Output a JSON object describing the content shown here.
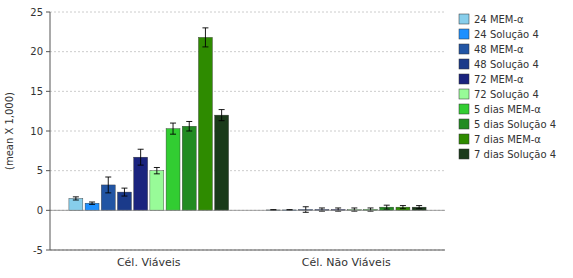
{
  "chart_data": {
    "type": "bar",
    "categories": [
      "Cél. Viáveis",
      "Cél. Não Viáveis"
    ],
    "series": [
      {
        "name": "24 MEM-α",
        "color": "#87ceeb",
        "values": [
          1.5,
          0.05
        ],
        "errors": [
          0.2,
          0.05
        ]
      },
      {
        "name": "24 Solução 4",
        "color": "#1e90ff",
        "values": [
          0.9,
          0.05
        ],
        "errors": [
          0.15,
          0.05
        ]
      },
      {
        "name": "48 MEM-α",
        "color": "#2255a4",
        "values": [
          3.2,
          0.1
        ],
        "errors": [
          1.0,
          0.35
        ]
      },
      {
        "name": "48 Solução 4",
        "color": "#1a3a8a",
        "values": [
          2.3,
          0.1
        ],
        "errors": [
          0.5,
          0.2
        ]
      },
      {
        "name": "72 MEM-α",
        "color": "#1a237e",
        "values": [
          6.7,
          0.1
        ],
        "errors": [
          1.0,
          0.2
        ]
      },
      {
        "name": "72 Solução 4",
        "color": "#98fb98",
        "values": [
          5.0,
          0.1
        ],
        "errors": [
          0.4,
          0.2
        ]
      },
      {
        "name": "5 dias MEM-α",
        "color": "#32cd32",
        "values": [
          10.3,
          0.1
        ],
        "errors": [
          0.7,
          0.2
        ]
      },
      {
        "name": "5 dias Solução 4",
        "color": "#228b22",
        "values": [
          10.6,
          0.4
        ],
        "errors": [
          0.6,
          0.25
        ]
      },
      {
        "name": "7 dias MEM-α",
        "color": "#2e8b00",
        "values": [
          21.8,
          0.4
        ],
        "errors": [
          1.2,
          0.2
        ]
      },
      {
        "name": "7 dias Solução 4",
        "color": "#1a3a1a",
        "values": [
          12.0,
          0.4
        ],
        "errors": [
          0.7,
          0.2
        ]
      }
    ],
    "ylabel": "(mean X 1,000)",
    "ylim": [
      -5,
      25
    ],
    "yticks": [
      -5,
      0,
      5,
      10,
      15,
      20,
      25
    ],
    "grid": true,
    "legend": "right"
  }
}
